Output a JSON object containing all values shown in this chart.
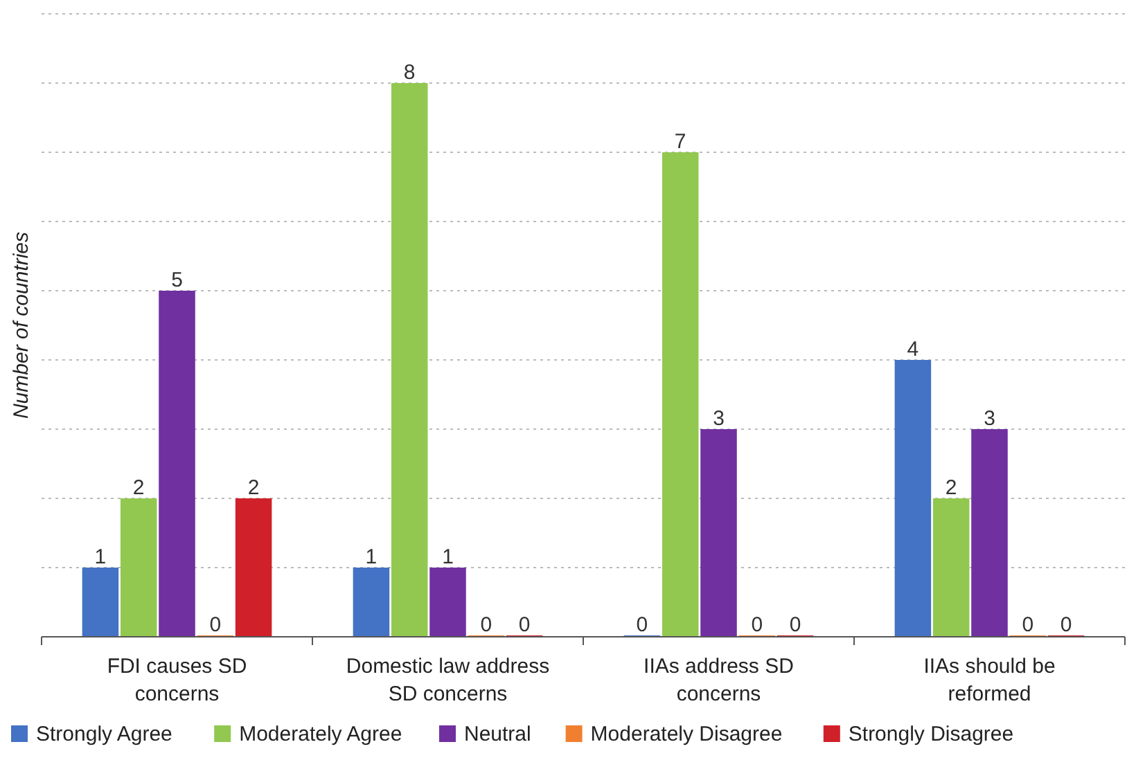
{
  "chart_data": {
    "type": "bar",
    "ylabel": "Number of countries",
    "categories": [
      "FDI causes SD concerns",
      "Domestic law address SD concerns",
      "IIAs address SD concerns",
      "IIAs should be reformed"
    ],
    "series": [
      {
        "name": "Strongly Agree",
        "color": "#4472c4",
        "values": [
          1,
          1,
          0,
          4
        ]
      },
      {
        "name": "Moderately Agree",
        "color": "#92c850",
        "values": [
          2,
          8,
          7,
          2
        ]
      },
      {
        "name": "Neutral",
        "color": "#7030a0",
        "values": [
          5,
          1,
          3,
          3
        ]
      },
      {
        "name": "Moderately Disagree",
        "color": "#f08030",
        "values": [
          0,
          0,
          0,
          0
        ]
      },
      {
        "name": "Strongly Disagree",
        "color": "#d0202a",
        "values": [
          2,
          0,
          0,
          0
        ]
      }
    ],
    "ylim": [
      0,
      9
    ],
    "yticks": [
      {
        "value": 0,
        "label": null
      },
      {
        "value": 1,
        "label": null
      },
      {
        "value": 2,
        "label": null
      },
      {
        "value": 3,
        "label": null
      },
      {
        "value": 4,
        "label": null
      },
      {
        "value": 5,
        "label": null
      },
      {
        "value": 6,
        "label": null
      },
      {
        "value": 7,
        "label": null
      },
      {
        "value": 8,
        "label": null
      },
      {
        "value": 9,
        "label": null
      }
    ],
    "tick_labels": "x",
    "grid": "y",
    "data_labels": true,
    "legend": "bottom"
  }
}
